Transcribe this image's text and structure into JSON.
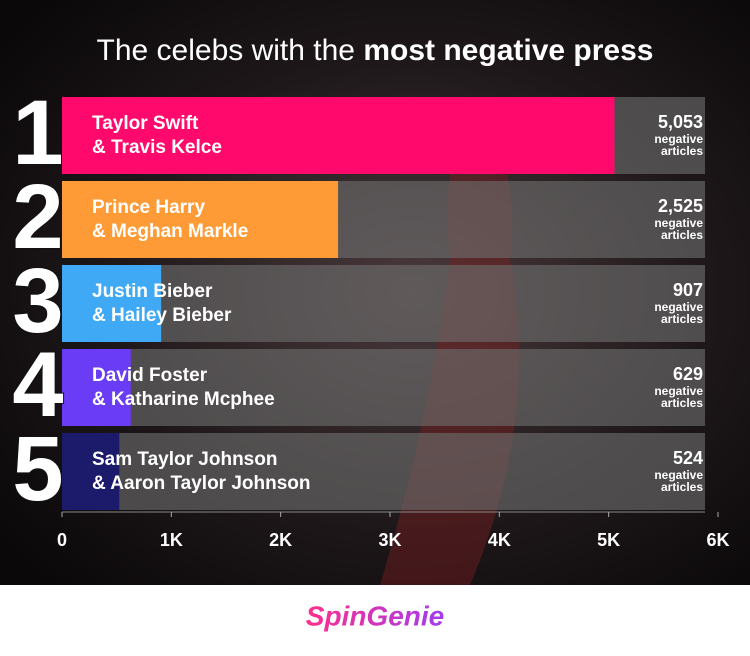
{
  "chart_data": {
    "type": "bar",
    "title_lead": "The celebs with the",
    "title_emphasis": "most negative press",
    "ranks": [
      1,
      2,
      3,
      4,
      5
    ],
    "categories": [
      [
        "Taylor Swift",
        "& Travis Kelce"
      ],
      [
        "Prince Harry",
        "& Meghan Markle"
      ],
      [
        "Justin Bieber",
        "& Hailey Bieber"
      ],
      [
        "David Foster",
        "& Katharine Mcphee"
      ],
      [
        "Sam Taylor Johnson",
        "& Aaron Taylor Johnson"
      ]
    ],
    "values": [
      5053,
      2525,
      907,
      629,
      524
    ],
    "value_labels": [
      "5,053",
      "2,525",
      "907",
      "629",
      "524"
    ],
    "value_unit": [
      "negative",
      "articles"
    ],
    "colors": [
      "#ff0a6c",
      "#ff9b36",
      "#3fa9f5",
      "#6a3cf5",
      "#1c1a6b"
    ],
    "xlim": [
      0,
      6000
    ],
    "xticks": [
      0,
      {
        "value": 1000,
        "label": "1K"
      },
      {
        "value": 2000,
        "label": "2K"
      },
      {
        "value": 3000,
        "label": "3K"
      },
      {
        "value": 4000,
        "label": "4K"
      },
      {
        "value": 5000,
        "label": "5K"
      },
      {
        "value": 6000,
        "label": "6K"
      }
    ],
    "brand": "SpinGenie"
  }
}
